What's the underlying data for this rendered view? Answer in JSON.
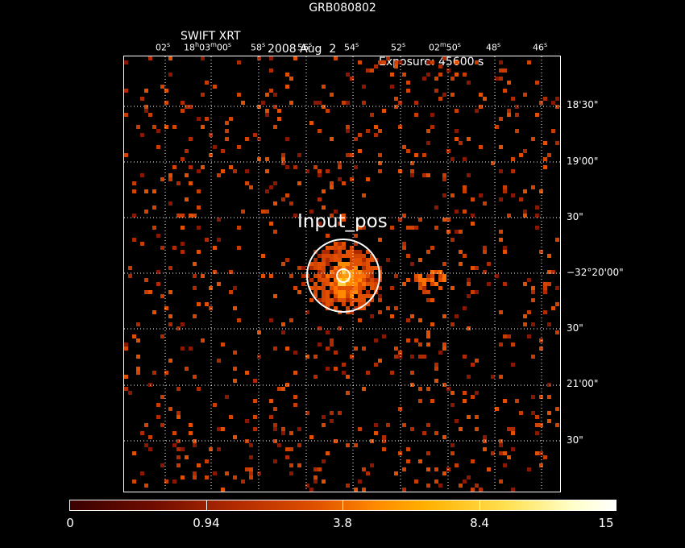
{
  "title": "GRB080802",
  "subtitle": {
    "instrument": "SWIFT XRT",
    "date": "2008 Aug  2",
    "exposure": "Exposure: 45600 s"
  },
  "source_label": "Input_pos",
  "ra_labels": [
    {
      "sec": "02",
      "unit": "s"
    },
    {
      "pre": "18",
      "h": "h",
      "m": "03",
      "mu": "m",
      "sec": "00",
      "unit": "s"
    },
    {
      "sec": "58",
      "unit": "s"
    },
    {
      "sec": "56",
      "unit": "s"
    },
    {
      "sec": "54",
      "unit": "s"
    },
    {
      "sec": "52",
      "unit": "s"
    },
    {
      "min": "02",
      "mu": "m",
      "sec": "50",
      "unit": "s"
    },
    {
      "sec": "48",
      "unit": "s"
    },
    {
      "sec": "46",
      "unit": "s"
    }
  ],
  "dec_labels": [
    "18'30\"",
    "19'00\"",
    "30\"",
    "−32°20'00\"",
    "30\"",
    "21'00\"",
    "30\""
  ],
  "colorbar": {
    "labels": [
      "0",
      "0.94",
      "3.8",
      "8.4",
      "15"
    ],
    "colors": [
      "#3a0000",
      "#6e0d00",
      "#b02a00",
      "#e05000",
      "#ff8a00",
      "#ffb000",
      "#ffe050",
      "#ffffc8",
      "#ffffff"
    ]
  }
}
